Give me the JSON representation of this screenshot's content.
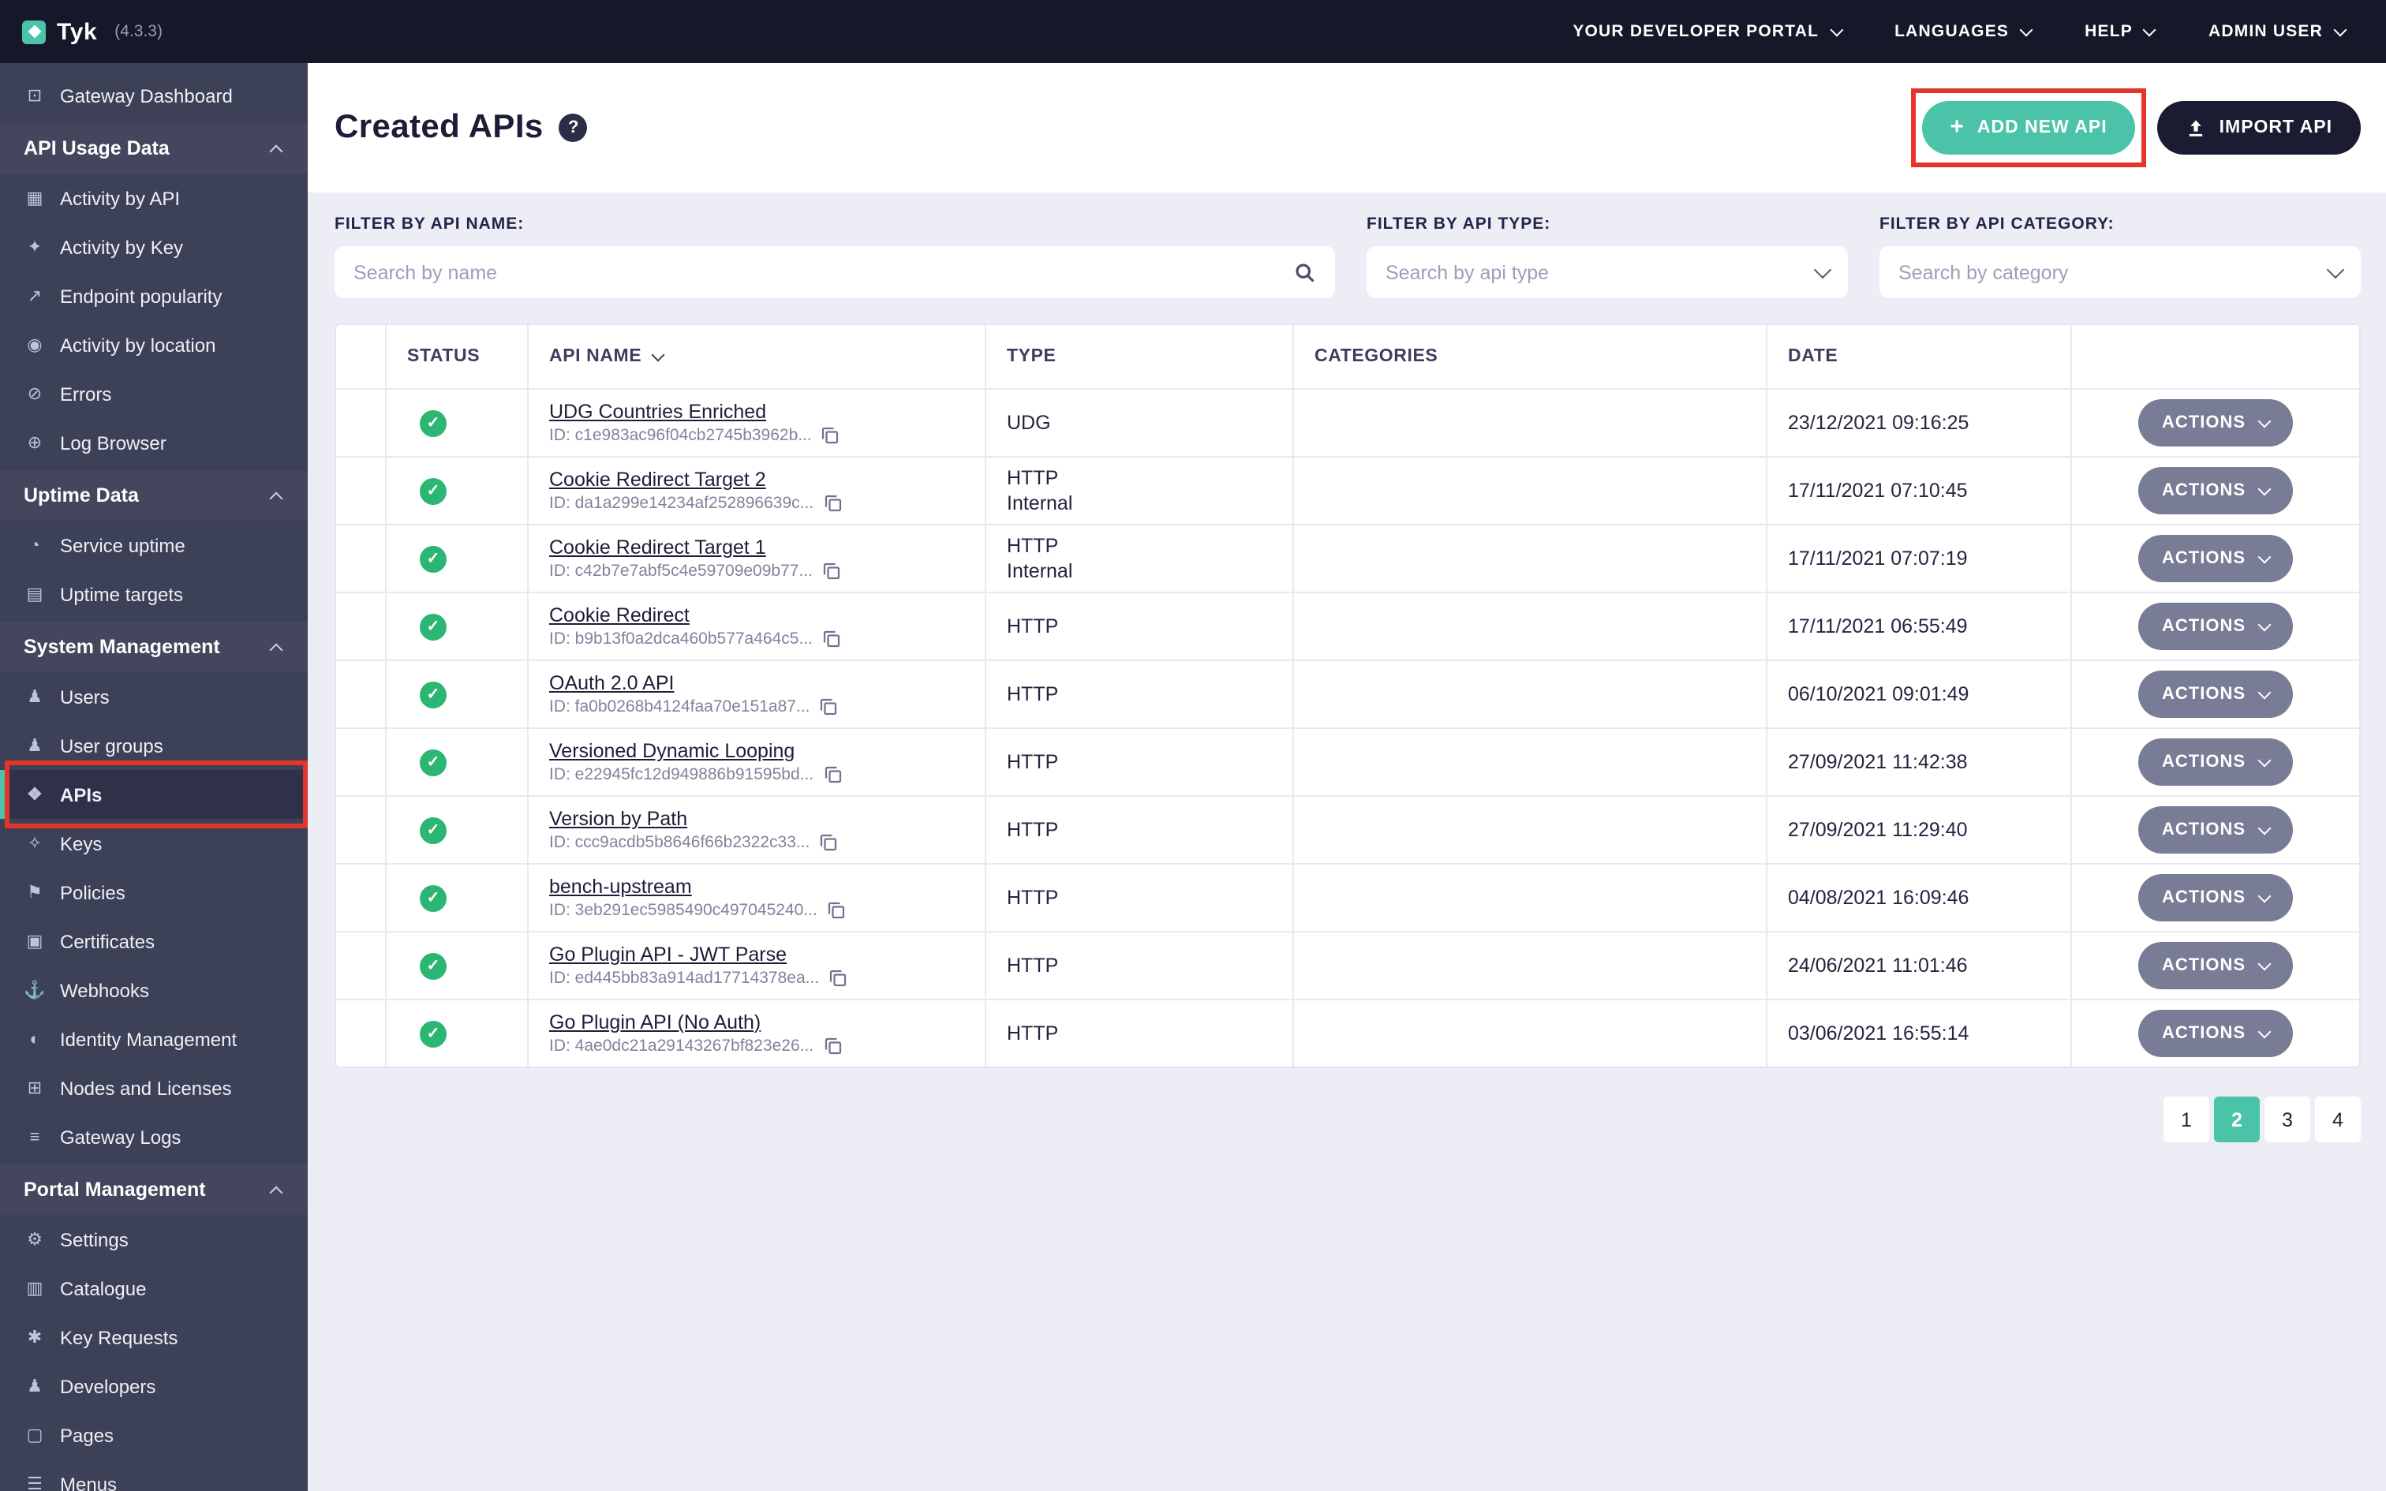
{
  "topbar": {
    "logo_text": "Tyk",
    "version": "(4.3.3)",
    "menus": [
      {
        "label": "YOUR DEVELOPER PORTAL",
        "icon": "chevron-down-icon"
      },
      {
        "label": "LANGUAGES",
        "icon": "chevron-down-icon"
      },
      {
        "label": "HELP",
        "icon": "chevron-down-icon"
      },
      {
        "label": "ADMIN USER",
        "icon": "chevron-down-icon"
      }
    ]
  },
  "sidebar": {
    "items": [
      {
        "type": "link",
        "label": "Gateway Dashboard",
        "icon": "dashboard-icon"
      },
      {
        "type": "section",
        "label": "API Usage Data",
        "icon": "chevron-up-icon"
      },
      {
        "type": "link",
        "label": "Activity by API",
        "icon": "activity-api-icon"
      },
      {
        "type": "link",
        "label": "Activity by Key",
        "icon": "activity-key-icon"
      },
      {
        "type": "link",
        "label": "Endpoint popularity",
        "icon": "endpoint-popularity-icon"
      },
      {
        "type": "link",
        "label": "Activity by location",
        "icon": "location-icon"
      },
      {
        "type": "link",
        "label": "Errors",
        "icon": "errors-icon"
      },
      {
        "type": "link",
        "label": "Log Browser",
        "icon": "log-browser-icon"
      },
      {
        "type": "section",
        "label": "Uptime Data",
        "icon": "chevron-up-icon"
      },
      {
        "type": "link",
        "label": "Service uptime",
        "icon": "service-uptime-icon"
      },
      {
        "type": "link",
        "label": "Uptime targets",
        "icon": "uptime-targets-icon"
      },
      {
        "type": "section",
        "label": "System Management",
        "icon": "chevron-up-icon"
      },
      {
        "type": "link",
        "label": "Users",
        "icon": "users-icon"
      },
      {
        "type": "link",
        "label": "User groups",
        "icon": "user-groups-icon"
      },
      {
        "type": "link",
        "label": "APIs",
        "icon": "apis-icon",
        "active": true,
        "annotated": true
      },
      {
        "type": "link",
        "label": "Keys",
        "icon": "keys-icon"
      },
      {
        "type": "link",
        "label": "Policies",
        "icon": "policies-icon"
      },
      {
        "type": "link",
        "label": "Certificates",
        "icon": "certificates-icon"
      },
      {
        "type": "link",
        "label": "Webhooks",
        "icon": "webhooks-icon"
      },
      {
        "type": "link",
        "label": "Identity Management",
        "icon": "identity-icon"
      },
      {
        "type": "link",
        "label": "Nodes and Licenses",
        "icon": "nodes-icon"
      },
      {
        "type": "link",
        "label": "Gateway Logs",
        "icon": "gateway-logs-icon"
      },
      {
        "type": "section",
        "label": "Portal Management",
        "icon": "chevron-up-icon"
      },
      {
        "type": "link",
        "label": "Settings",
        "icon": "settings-icon"
      },
      {
        "type": "link",
        "label": "Catalogue",
        "icon": "catalogue-icon"
      },
      {
        "type": "link",
        "label": "Key Requests",
        "icon": "key-requests-icon"
      },
      {
        "type": "link",
        "label": "Developers",
        "icon": "developers-icon"
      },
      {
        "type": "link",
        "label": "Pages",
        "icon": "pages-icon"
      },
      {
        "type": "link",
        "label": "Menus",
        "icon": "menus-icon"
      }
    ]
  },
  "page": {
    "title": "Created APIs",
    "help_glyph": "?",
    "add_button": "ADD NEW API",
    "add_icon": "plus-icon",
    "import_button": "IMPORT API",
    "import_icon": "upload-icon"
  },
  "filters": [
    {
      "label": "FILTER BY API NAME:",
      "placeholder": "Search by name",
      "kind": "search",
      "icon": "search-icon"
    },
    {
      "label": "FILTER BY API TYPE:",
      "placeholder": "Search by api type",
      "kind": "select",
      "icon": "chevron-down-icon"
    },
    {
      "label": "FILTER BY API CATEGORY:",
      "placeholder": "Search by category",
      "kind": "select",
      "icon": "chevron-down-icon"
    }
  ],
  "table": {
    "columns": [
      "STATUS",
      "API NAME",
      "TYPE",
      "CATEGORIES",
      "DATE"
    ],
    "sort_column": "API NAME",
    "actions_label": "ACTIONS",
    "status_icon": "check-icon",
    "rows": [
      {
        "status": "active",
        "name": "UDG Countries Enriched",
        "id": "ID: c1e983ac96f04cb2745b3962b...",
        "type": "UDG",
        "type2": "",
        "categories": "",
        "date": "23/12/2021 09:16:25"
      },
      {
        "status": "active",
        "name": "Cookie Redirect Target 2",
        "id": "ID: da1a299e14234af252896639c...",
        "type": "HTTP",
        "type2": "Internal",
        "categories": "",
        "date": "17/11/2021 07:10:45"
      },
      {
        "status": "active",
        "name": "Cookie Redirect Target 1",
        "id": "ID: c42b7e7abf5c4e59709e09b77...",
        "type": "HTTP",
        "type2": "Internal",
        "categories": "",
        "date": "17/11/2021 07:07:19"
      },
      {
        "status": "active",
        "name": "Cookie Redirect",
        "id": "ID: b9b13f0a2dca460b577a464c5...",
        "type": "HTTP",
        "type2": "",
        "categories": "",
        "date": "17/11/2021 06:55:49"
      },
      {
        "status": "active",
        "name": "OAuth 2.0 API",
        "id": "ID: fa0b0268b4124faa70e151a87...",
        "type": "HTTP",
        "type2": "",
        "categories": "",
        "date": "06/10/2021 09:01:49"
      },
      {
        "status": "active",
        "name": "Versioned Dynamic Looping",
        "id": "ID: e22945fc12d949886b91595bd...",
        "type": "HTTP",
        "type2": "",
        "categories": "",
        "date": "27/09/2021 11:42:38"
      },
      {
        "status": "active",
        "name": "Version by Path",
        "id": "ID: ccc9acdb5b8646f66b2322c33...",
        "type": "HTTP",
        "type2": "",
        "categories": "",
        "date": "27/09/2021 11:29:40"
      },
      {
        "status": "active",
        "name": "bench-upstream",
        "id": "ID: 3eb291ec5985490c497045240...",
        "type": "HTTP",
        "type2": "",
        "categories": "",
        "date": "04/08/2021 16:09:46"
      },
      {
        "status": "active",
        "name": "Go Plugin API - JWT Parse",
        "id": "ID: ed445bb83a914ad17714378ea...",
        "type": "HTTP",
        "type2": "",
        "categories": "",
        "date": "24/06/2021 11:01:46"
      },
      {
        "status": "active",
        "name": "Go Plugin API (No Auth)",
        "id": "ID: 4ae0dc21a29143267bf823e26...",
        "type": "HTTP",
        "type2": "",
        "categories": "",
        "date": "03/06/2021 16:55:14"
      }
    ]
  },
  "pagination": {
    "pages": [
      "1",
      "2",
      "3",
      "4"
    ],
    "active": "2"
  }
}
